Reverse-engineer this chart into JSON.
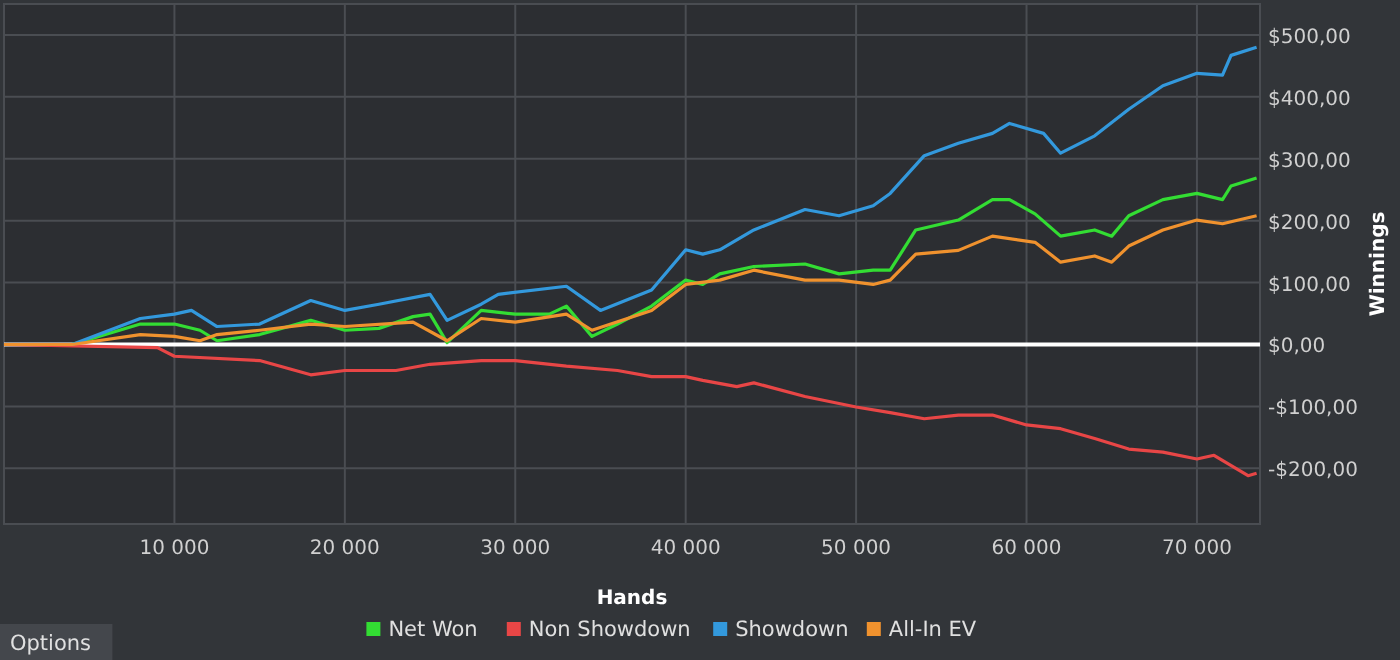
{
  "chart_data": {
    "type": "line",
    "xlabel": "Hands",
    "ylabel": "Winnings",
    "xlim": [
      0,
      73700
    ],
    "ylim": [
      -290,
      550
    ],
    "xticks": [
      {
        "value": 10000,
        "label": "10 000"
      },
      {
        "value": 20000,
        "label": "20 000"
      },
      {
        "value": 30000,
        "label": "30 000"
      },
      {
        "value": 40000,
        "label": "40 000"
      },
      {
        "value": 50000,
        "label": "50 000"
      },
      {
        "value": 60000,
        "label": "60 000"
      },
      {
        "value": 70000,
        "label": "70 000"
      }
    ],
    "yticks": [
      {
        "value": -200,
        "label": "-$200,00"
      },
      {
        "value": -100,
        "label": "-$100,00"
      },
      {
        "value": 0,
        "label": "$0,00"
      },
      {
        "value": 100,
        "label": "$100,00"
      },
      {
        "value": 200,
        "label": "$200,00"
      },
      {
        "value": 300,
        "label": "$300,00"
      },
      {
        "value": 400,
        "label": "$400,00"
      },
      {
        "value": 500,
        "label": "$500,00"
      }
    ],
    "grid": true,
    "legend": "bottom",
    "marker": "none",
    "line_style": "solid",
    "ref_lines": [
      {
        "axis": "y",
        "value": 0,
        "color": "#ffffff"
      }
    ],
    "annotations": [
      "Options"
    ],
    "series": [
      {
        "name": "Net Won",
        "color": "#33dd33",
        "x": [
          0,
          4000,
          8000,
          10000,
          11500,
          12500,
          15000,
          18000,
          20000,
          22000,
          24000,
          25000,
          26000,
          28000,
          30000,
          32000,
          33000,
          34500,
          36000,
          38000,
          40000,
          41000,
          42000,
          44000,
          47000,
          49000,
          51000,
          52000,
          53500,
          56000,
          58000,
          59000,
          60500,
          62000,
          64000,
          65000,
          66000,
          68000,
          70000,
          71500,
          72000,
          73500
        ],
        "values": [
          0,
          0,
          33,
          33,
          23,
          6,
          16,
          39,
          23,
          26,
          45,
          49,
          3,
          55,
          49,
          49,
          62,
          13,
          33,
          62,
          104,
          97,
          114,
          126,
          130,
          114,
          120,
          120,
          185,
          201,
          234,
          234,
          211,
          175,
          185,
          175,
          208,
          234,
          244,
          234,
          256,
          269
        ]
      },
      {
        "name": "Non Showdown",
        "color": "#e84646",
        "x": [
          0,
          9000,
          10000,
          15000,
          18000,
          20000,
          23000,
          25000,
          28000,
          30000,
          33000,
          36000,
          38000,
          40000,
          41000,
          43000,
          44000,
          47000,
          50000,
          52000,
          54000,
          56000,
          58000,
          60000,
          62000,
          64000,
          66000,
          68000,
          70000,
          71000,
          73000,
          73500
        ],
        "values": [
          0,
          -5,
          -19,
          -26,
          -49,
          -42,
          -42,
          -32,
          -26,
          -26,
          -35,
          -42,
          -52,
          -52,
          -58,
          -68,
          -62,
          -84,
          -101,
          -110,
          -120,
          -114,
          -114,
          -130,
          -136,
          -152,
          -169,
          -174,
          -185,
          -179,
          -212,
          -208
        ]
      },
      {
        "name": "Showdown",
        "color": "#3399dd",
        "x": [
          0,
          4000,
          8000,
          10000,
          11000,
          12500,
          15000,
          18000,
          20000,
          22000,
          25000,
          26000,
          28000,
          29000,
          33000,
          35000,
          38000,
          40000,
          41000,
          42000,
          44000,
          47000,
          49000,
          51000,
          52000,
          54000,
          56000,
          58000,
          59000,
          61000,
          62000,
          64000,
          66000,
          68000,
          70000,
          71500,
          72000,
          73500
        ],
        "values": [
          0,
          0,
          42,
          49,
          55,
          29,
          33,
          71,
          55,
          65,
          81,
          39,
          65,
          81,
          94,
          55,
          88,
          153,
          146,
          153,
          185,
          218,
          208,
          224,
          244,
          305,
          325,
          341,
          357,
          341,
          309,
          337,
          380,
          418,
          438,
          435,
          467,
          480
        ]
      },
      {
        "name": "All-In EV",
        "color": "#f0922e",
        "x": [
          0,
          4000,
          8000,
          10000,
          11500,
          12500,
          15000,
          18000,
          20000,
          24000,
          26000,
          28000,
          30000,
          33000,
          34500,
          38000,
          40000,
          42000,
          44000,
          47000,
          49000,
          51000,
          52000,
          53500,
          56000,
          58000,
          60500,
          62000,
          64000,
          65000,
          66000,
          68000,
          70000,
          71500,
          73500
        ],
        "values": [
          0,
          0,
          16,
          13,
          6,
          16,
          23,
          33,
          29,
          36,
          6,
          42,
          36,
          49,
          23,
          55,
          97,
          104,
          120,
          104,
          104,
          97,
          104,
          146,
          152,
          175,
          165,
          133,
          143,
          133,
          159,
          185,
          201,
          195,
          208
        ]
      }
    ]
  }
}
